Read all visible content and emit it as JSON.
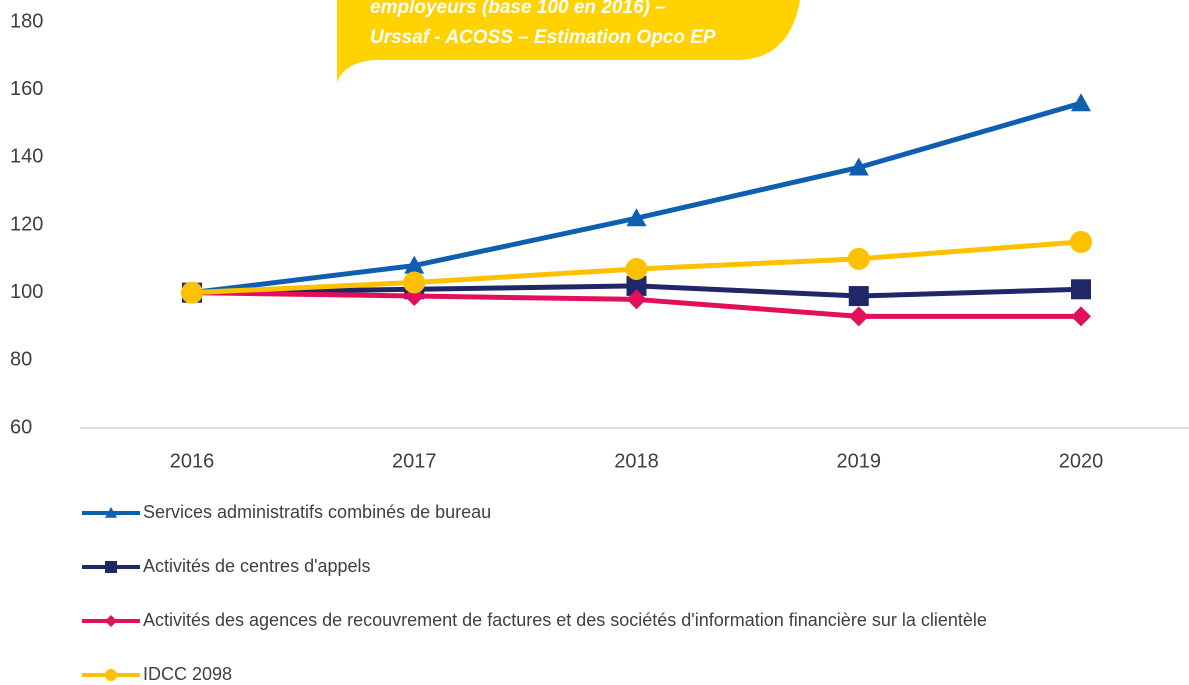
{
  "chart_data": {
    "type": "line",
    "annotation": [
      "employeurs  (base 100 en 2016) –",
      "Urssaf - ACOSS – Estimation Opco EP"
    ],
    "categories": [
      "2016",
      "2017",
      "2018",
      "2019",
      "2020"
    ],
    "series": [
      {
        "name": "Services administratifs combinés de bureau",
        "color": "#0f5fb0",
        "marker": "triangle",
        "values": [
          100,
          108,
          122,
          137,
          156
        ]
      },
      {
        "name": "Activités de centres d'appels",
        "color": "#1f2768",
        "marker": "square",
        "values": [
          100,
          101,
          102,
          99,
          101
        ]
      },
      {
        "name": "Activités des agences de recouvrement de factures et des sociétés d'information financière sur la clientèle",
        "color": "#e2105a",
        "marker": "diamond",
        "values": [
          100,
          99,
          98,
          93,
          93
        ]
      },
      {
        "name": "IDCC 2098",
        "color": "#ffc000",
        "marker": "circle",
        "values": [
          100,
          103,
          107,
          110,
          115
        ]
      }
    ],
    "ylim": [
      60,
      180
    ],
    "yticks": [
      60,
      80,
      100,
      120,
      140,
      160,
      180
    ],
    "legend": "bottom"
  }
}
